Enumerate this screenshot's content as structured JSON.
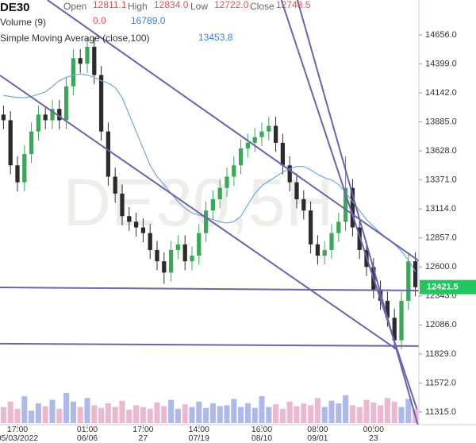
{
  "chart_data": {
    "type": "candlestick",
    "symbol": "DE30",
    "watermark": "DE30,5H",
    "header": {
      "open_label": "Open",
      "open": "12811.1",
      "high_label": "High",
      "high": "12834.0",
      "low_label": "Low",
      "low": "12722.0",
      "close_label": "Close",
      "close": "12748.5",
      "volume_label": "Volume (9)",
      "volume_a": "0.0",
      "volume_b": "16789.0",
      "sma_label": "Simple Moving Average (close,100)",
      "sma_value": "13453.8"
    },
    "last_price": 12421.5,
    "categories": [
      null,
      null,
      "17:00",
      null,
      null,
      null,
      null,
      null,
      null,
      null,
      null,
      null,
      "01:00",
      null,
      null,
      null,
      null,
      null,
      null,
      null,
      "17:00",
      null,
      null,
      null,
      null,
      null,
      null,
      null,
      "14:00",
      null,
      null,
      null,
      null,
      null,
      null,
      null,
      null,
      "16:00",
      null,
      null,
      null,
      null,
      null,
      null,
      null,
      "08:00",
      null,
      null,
      null,
      null,
      null,
      null,
      null,
      "00:00",
      null,
      null,
      null,
      null,
      null,
      null
    ],
    "category_dates": [
      null,
      null,
      "05/03/2022",
      null,
      null,
      null,
      null,
      null,
      null,
      null,
      null,
      null,
      "06/06",
      null,
      null,
      null,
      null,
      null,
      null,
      null,
      "27",
      null,
      null,
      null,
      null,
      null,
      null,
      null,
      "07/19",
      null,
      null,
      null,
      null,
      null,
      null,
      null,
      null,
      "08/10",
      null,
      null,
      null,
      null,
      null,
      null,
      null,
      "09/01",
      null,
      null,
      null,
      null,
      null,
      null,
      null,
      "23",
      null,
      null,
      null,
      null,
      null,
      null
    ],
    "open": [
      13950,
      13900,
      13500,
      13350,
      13600,
      13800,
      13950,
      13900,
      14000,
      13900,
      14200,
      14450,
      14400,
      14550,
      14300,
      13800,
      13400,
      13250,
      13050,
      13000,
      12950,
      12900,
      12750,
      12650,
      12550,
      12750,
      12800,
      12650,
      12700,
      12900,
      13100,
      13200,
      13300,
      13400,
      13500,
      13650,
      13700,
      13750,
      13800,
      13850,
      13700,
      13500,
      13350,
      13200,
      13100,
      12800,
      12700,
      12750,
      12900,
      13000,
      13300,
      12950,
      12750,
      12600,
      12400,
      12300,
      12150,
      11950,
      12300,
      12650
    ],
    "high": [
      14030,
      13980,
      13580,
      13680,
      13880,
      14030,
      14030,
      14080,
      14080,
      14280,
      14530,
      14530,
      14630,
      14630,
      14380,
      13880,
      13480,
      13330,
      13130,
      13080,
      13030,
      12980,
      12830,
      12730,
      12830,
      12880,
      12880,
      12780,
      12980,
      13180,
      13280,
      13380,
      13480,
      13580,
      13730,
      13780,
      13830,
      13880,
      13930,
      13930,
      13780,
      13580,
      13430,
      13280,
      13180,
      12880,
      12830,
      12980,
      13080,
      13580,
      13380,
      13030,
      12830,
      12680,
      12480,
      12380,
      12230,
      12380,
      12730,
      12730
    ],
    "low": [
      13820,
      13420,
      13270,
      13270,
      13520,
      13720,
      13820,
      13820,
      13820,
      13820,
      14120,
      14320,
      14320,
      14220,
      13720,
      13320,
      13170,
      12970,
      12920,
      12870,
      12820,
      12670,
      12570,
      12450,
      12470,
      12670,
      12570,
      12570,
      12620,
      12820,
      13020,
      13120,
      13220,
      13320,
      13420,
      13570,
      13620,
      13670,
      13720,
      13620,
      13420,
      13270,
      13120,
      13020,
      12720,
      12620,
      12620,
      12670,
      12820,
      12920,
      12870,
      12670,
      12520,
      12320,
      12220,
      12070,
      11870,
      11870,
      12220,
      12340
    ],
    "close": [
      13900,
      13500,
      13350,
      13600,
      13800,
      13950,
      13900,
      14000,
      13900,
      14200,
      14450,
      14400,
      14550,
      14300,
      13800,
      13400,
      13250,
      13050,
      13000,
      12950,
      12900,
      12750,
      12650,
      12550,
      12750,
      12800,
      12650,
      12700,
      12900,
      13100,
      13200,
      13300,
      13400,
      13500,
      13650,
      13700,
      13750,
      13800,
      13850,
      13700,
      13500,
      13350,
      13200,
      13100,
      12800,
      12700,
      12750,
      12900,
      13000,
      13300,
      12950,
      12750,
      12600,
      12400,
      12300,
      12150,
      11950,
      12300,
      12650,
      12420
    ],
    "sma": {
      "color": "#6fa8dc",
      "values": [
        14120,
        14110,
        14100,
        14100,
        14110,
        14130,
        14150,
        14200,
        14250,
        14280,
        14300,
        14310,
        14300,
        14280,
        14250,
        14230,
        14190,
        14100,
        13950,
        13800,
        13650,
        13500,
        13400,
        13330,
        13250,
        13180,
        13120,
        13080,
        13060,
        13040,
        13020,
        13000,
        12990,
        13000,
        13050,
        13150,
        13250,
        13320,
        13360,
        13400,
        13440,
        13470,
        13490,
        13490,
        13460,
        13420,
        13390,
        13370,
        13330,
        13260,
        13180,
        13100,
        13020,
        12960,
        12900,
        12850,
        12800,
        12740,
        12660,
        12560
      ]
    },
    "volume": [
      9000,
      12000,
      8000,
      15000,
      7000,
      11000,
      9500,
      13000,
      8000,
      16789,
      12000,
      9000,
      14000,
      10000,
      8500,
      11000,
      9000,
      12500,
      7500,
      10000,
      9000,
      8000,
      11500,
      9500,
      13000,
      8000,
      10500,
      9000,
      12000,
      8500,
      11000,
      9500,
      10000,
      13500,
      9000,
      11000,
      8500,
      15000,
      9000,
      10500,
      8000,
      12000,
      9500,
      11000,
      10000,
      14000,
      9000,
      12500,
      11000,
      15500,
      10000,
      9000,
      13000,
      11500,
      10000,
      14000,
      12000,
      9000,
      13500,
      8000
    ],
    "volume_colors": [
      "#9aa7e6",
      "#e7a6c4"
    ],
    "trendlines": [
      {
        "x": [
          6.3,
          59.7
        ],
        "y": [
          14965,
          12645
        ]
      },
      {
        "x": [
          -0.5,
          56.3
        ],
        "y": [
          14297,
          11871
        ]
      },
      {
        "x": [
          -0.5,
          59.5
        ],
        "y": [
          12419,
          12391
        ]
      },
      {
        "x": [
          -0.5,
          59.5
        ],
        "y": [
          11920,
          11899
        ]
      },
      {
        "x": [
          39.8,
          59.2
        ],
        "y": [
          14965,
          11343
        ]
      },
      {
        "x": [
          42.1,
          59.5
        ],
        "y": [
          14965,
          11168
        ]
      }
    ],
    "trendline_color": "#6a63b0",
    "up_color": "#3aa857",
    "down_color": "#2b2b2b",
    "price_tag_color": "#22c55e",
    "ylim": [
      11202,
      14965
    ],
    "yticks": [
      {
        "value": 11315,
        "label": "11315.0"
      },
      {
        "value": 11572,
        "label": "11572.0"
      },
      {
        "value": 11829,
        "label": "11829.0"
      },
      {
        "value": 12086,
        "label": "12086.0"
      },
      {
        "value": 12343,
        "label": "12343.0"
      },
      {
        "value": 12600,
        "label": "12600.0"
      },
      {
        "value": 12857,
        "label": "12857.0"
      },
      {
        "value": 13114,
        "label": "13114.0"
      },
      {
        "value": 13371,
        "label": "13371.0"
      },
      {
        "value": 13628,
        "label": "13628.0"
      },
      {
        "value": 13885,
        "label": "13885.0"
      },
      {
        "value": 14142,
        "label": "14142.0"
      },
      {
        "value": 14399,
        "label": "14399.0"
      },
      {
        "value": 14656,
        "label": "14656.0"
      }
    ]
  }
}
